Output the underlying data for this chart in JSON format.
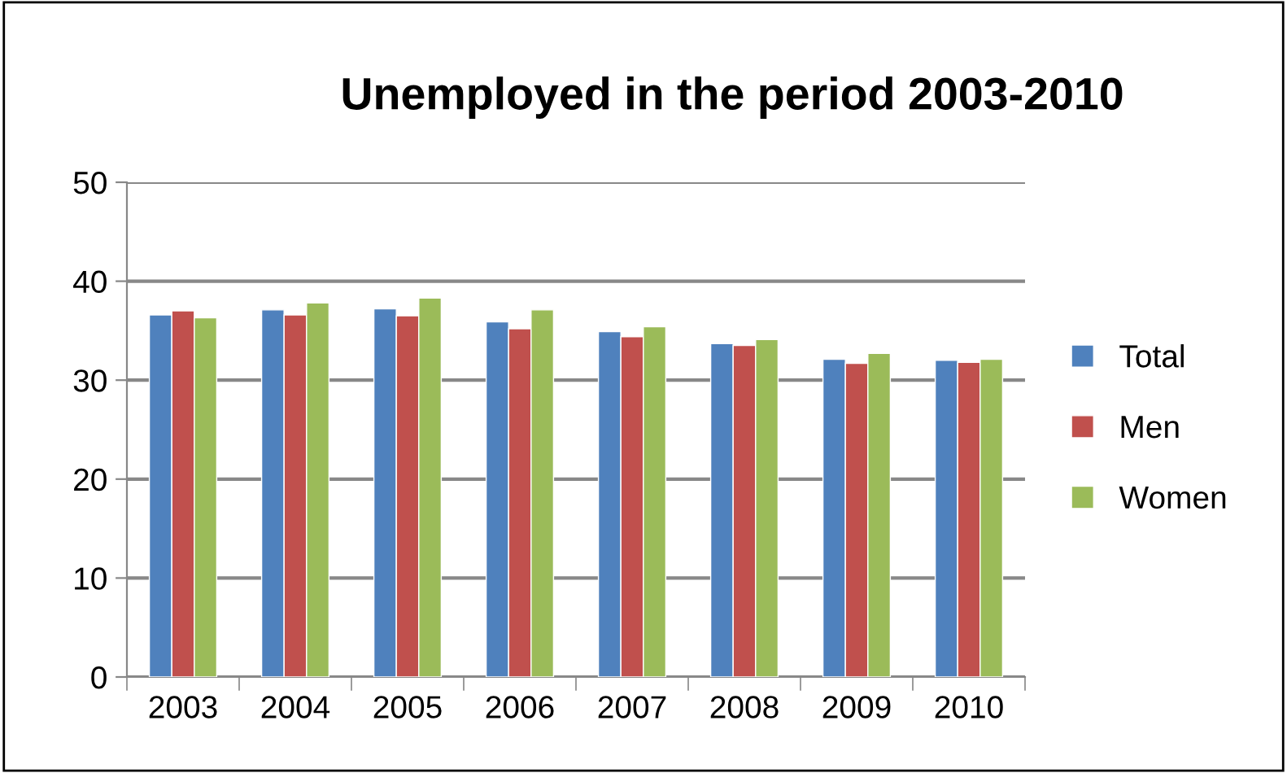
{
  "chart_data": {
    "type": "bar",
    "title": "Unemployed in the period 2003-2010",
    "categories": [
      "2003",
      "2004",
      "2005",
      "2006",
      "2007",
      "2008",
      "2009",
      "2010"
    ],
    "series": [
      {
        "name": "Total",
        "color": "#4f81bd",
        "values": [
          36.6,
          37.1,
          37.2,
          35.9,
          34.9,
          33.7,
          32.1,
          32.0
        ]
      },
      {
        "name": "Men",
        "color": "#c0504d",
        "values": [
          37.0,
          36.6,
          36.5,
          35.2,
          34.4,
          33.5,
          31.7,
          31.8
        ]
      },
      {
        "name": "Women",
        "color": "#9bbb59",
        "values": [
          36.3,
          37.8,
          38.3,
          37.1,
          35.4,
          34.1,
          32.7,
          32.1
        ]
      }
    ],
    "ylim": [
      0,
      50
    ],
    "yticks": [
      0,
      10,
      20,
      30,
      40,
      50
    ],
    "grid": "y",
    "legend": "right"
  }
}
